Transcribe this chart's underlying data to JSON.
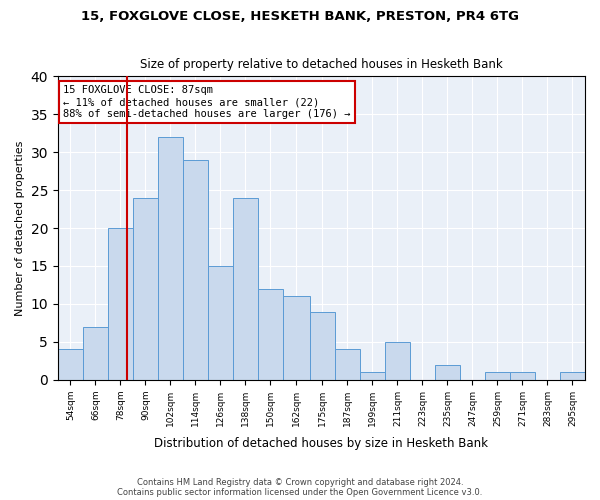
{
  "title1": "15, FOXGLOVE CLOSE, HESKETH BANK, PRESTON, PR4 6TG",
  "title2": "Size of property relative to detached houses in Hesketh Bank",
  "xlabel": "Distribution of detached houses by size in Hesketh Bank",
  "ylabel": "Number of detached properties",
  "footnote1": "Contains HM Land Registry data © Crown copyright and database right 2024.",
  "footnote2": "Contains public sector information licensed under the Open Government Licence v3.0.",
  "annotation_line1": "15 FOXGLOVE CLOSE: 87sqm",
  "annotation_line2": "← 11% of detached houses are smaller (22)",
  "annotation_line3": "88% of semi-detached houses are larger (176) →",
  "property_size": 87,
  "bar_edges": [
    54,
    66,
    78,
    90,
    102,
    114,
    126,
    138,
    150,
    162,
    175,
    187,
    199,
    211,
    223,
    235,
    247,
    259,
    271,
    283,
    295
  ],
  "bar_heights": [
    4,
    7,
    20,
    24,
    32,
    29,
    15,
    24,
    12,
    11,
    9,
    4,
    1,
    5,
    0,
    2,
    0,
    1,
    1,
    0,
    1
  ],
  "bar_color": "#c9d9ed",
  "bar_edge_color": "#5b9bd5",
  "vline_color": "#cc0000",
  "vline_x": 87,
  "annotation_box_color": "#ffffff",
  "annotation_box_edge_color": "#cc0000",
  "background_color": "#eaf0f8",
  "ylim": [
    0,
    40
  ],
  "yticks": [
    0,
    5,
    10,
    15,
    20,
    25,
    30,
    35,
    40
  ]
}
